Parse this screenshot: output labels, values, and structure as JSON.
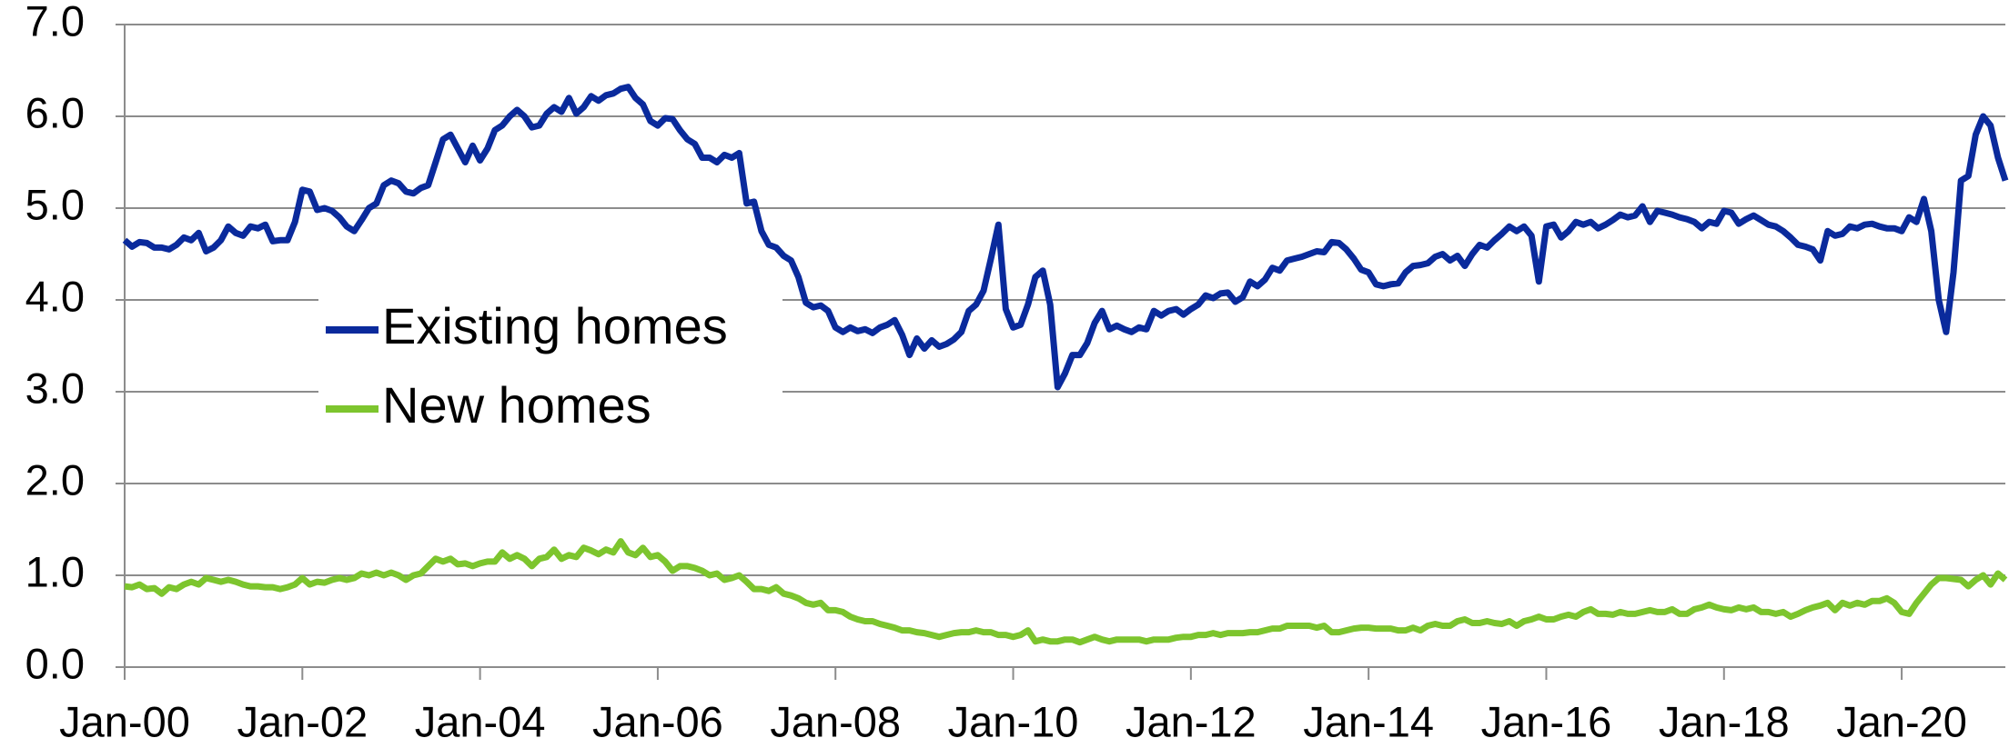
{
  "chart_data": {
    "type": "line",
    "categories": [
      "Jan-00",
      null,
      null,
      null,
      null,
      null,
      null,
      null,
      null,
      null,
      null,
      null,
      null,
      null,
      null,
      null,
      null,
      null,
      null,
      null,
      null,
      null,
      null,
      null,
      "Jan-02",
      null,
      null,
      null,
      null,
      null,
      null,
      null,
      null,
      null,
      null,
      null,
      null,
      null,
      null,
      null,
      null,
      null,
      null,
      null,
      null,
      null,
      null,
      null,
      "Jan-04",
      null,
      null,
      null,
      null,
      null,
      null,
      null,
      null,
      null,
      null,
      null,
      null,
      null,
      null,
      null,
      null,
      null,
      null,
      null,
      null,
      null,
      null,
      null,
      "Jan-06",
      null,
      null,
      null,
      null,
      null,
      null,
      null,
      null,
      null,
      null,
      null,
      null,
      null,
      null,
      null,
      null,
      null,
      null,
      null,
      null,
      null,
      null,
      null,
      "Jan-08",
      null,
      null,
      null,
      null,
      null,
      null,
      null,
      null,
      null,
      null,
      null,
      null,
      null,
      null,
      null,
      null,
      null,
      null,
      null,
      null,
      null,
      null,
      null,
      "Jan-10",
      null,
      null,
      null,
      null,
      null,
      null,
      null,
      null,
      null,
      null,
      null,
      null,
      null,
      null,
      null,
      null,
      null,
      null,
      null,
      null,
      null,
      null,
      null,
      "Jan-12",
      null,
      null,
      null,
      null,
      null,
      null,
      null,
      null,
      null,
      null,
      null,
      null,
      null,
      null,
      null,
      null,
      null,
      null,
      null,
      null,
      null,
      null,
      null,
      "Jan-14",
      null,
      null,
      null,
      null,
      null,
      null,
      null,
      null,
      null,
      null,
      null,
      null,
      null,
      null,
      null,
      null,
      null,
      null,
      null,
      null,
      null,
      null,
      null,
      "Jan-16",
      null,
      null,
      null,
      null,
      null,
      null,
      null,
      null,
      null,
      null,
      null,
      null,
      null,
      null,
      null,
      null,
      null,
      null,
      null,
      null,
      null,
      null,
      null,
      "Jan-18",
      null,
      null,
      null,
      null,
      null,
      null,
      null,
      null,
      null,
      null,
      null,
      null,
      null,
      null,
      null,
      null,
      null,
      null,
      null,
      null,
      null,
      null,
      null,
      "Jan-20",
      null,
      null,
      null,
      null,
      null,
      null,
      null,
      null,
      null,
      null,
      null,
      null,
      null,
      null
    ],
    "series": [
      {
        "name": "Existing homes",
        "color": "#0a2a9c",
        "values": [
          4.65,
          4.58,
          4.63,
          4.62,
          4.57,
          4.57,
          4.55,
          4.6,
          4.68,
          4.65,
          4.73,
          4.53,
          4.57,
          4.65,
          4.8,
          4.73,
          4.7,
          4.8,
          4.78,
          4.82,
          4.64,
          4.65,
          4.65,
          4.85,
          5.2,
          5.18,
          4.98,
          5.0,
          4.97,
          4.9,
          4.8,
          4.75,
          4.87,
          5.0,
          5.05,
          5.25,
          5.3,
          5.27,
          5.18,
          5.16,
          5.22,
          5.25,
          5.5,
          5.75,
          5.8,
          5.65,
          5.5,
          5.68,
          5.52,
          5.65,
          5.85,
          5.9,
          6.0,
          6.07,
          6.0,
          5.88,
          5.9,
          6.03,
          6.1,
          6.05,
          6.2,
          6.03,
          6.1,
          6.22,
          6.17,
          6.23,
          6.25,
          6.3,
          6.32,
          6.2,
          6.13,
          5.95,
          5.9,
          5.98,
          5.97,
          5.85,
          5.75,
          5.7,
          5.55,
          5.55,
          5.5,
          5.58,
          5.55,
          5.6,
          5.05,
          5.07,
          4.75,
          4.6,
          4.57,
          4.48,
          4.43,
          4.25,
          3.97,
          3.92,
          3.94,
          3.88,
          3.7,
          3.65,
          3.7,
          3.66,
          3.68,
          3.64,
          3.7,
          3.73,
          3.78,
          3.62,
          3.4,
          3.58,
          3.47,
          3.56,
          3.49,
          3.52,
          3.57,
          3.65,
          3.88,
          3.95,
          4.1,
          4.45,
          4.82,
          3.9,
          3.7,
          3.73,
          3.95,
          4.25,
          4.32,
          3.95,
          3.05,
          3.2,
          3.4,
          3.4,
          3.53,
          3.75,
          3.88,
          3.68,
          3.72,
          3.68,
          3.65,
          3.7,
          3.68,
          3.88,
          3.83,
          3.88,
          3.9,
          3.84,
          3.9,
          3.95,
          4.05,
          4.02,
          4.07,
          4.08,
          3.98,
          4.03,
          4.2,
          4.15,
          4.22,
          4.35,
          4.32,
          4.43,
          4.45,
          4.47,
          4.5,
          4.53,
          4.52,
          4.63,
          4.62,
          4.55,
          4.45,
          4.33,
          4.3,
          4.17,
          4.15,
          4.17,
          4.18,
          4.3,
          4.37,
          4.38,
          4.4,
          4.47,
          4.5,
          4.43,
          4.48,
          4.37,
          4.5,
          4.6,
          4.57,
          4.65,
          4.72,
          4.8,
          4.75,
          4.8,
          4.7,
          4.2,
          4.8,
          4.82,
          4.68,
          4.75,
          4.85,
          4.82,
          4.85,
          4.78,
          4.82,
          4.87,
          4.93,
          4.9,
          4.92,
          5.02,
          4.85,
          4.97,
          4.95,
          4.93,
          4.9,
          4.88,
          4.85,
          4.78,
          4.85,
          4.83,
          4.97,
          4.95,
          4.83,
          4.88,
          4.92,
          4.87,
          4.82,
          4.8,
          4.75,
          4.68,
          4.6,
          4.58,
          4.55,
          4.43,
          4.75,
          4.7,
          4.72,
          4.8,
          4.78,
          4.82,
          4.83,
          4.8,
          4.78,
          4.78,
          4.75,
          4.9,
          4.85,
          5.1,
          4.75,
          4.0,
          3.65,
          4.3,
          5.3,
          5.35,
          5.8,
          6.0,
          5.9,
          5.55,
          5.3
        ]
      },
      {
        "name": "New homes",
        "color": "#7dc52e",
        "values": [
          0.88,
          0.87,
          0.9,
          0.85,
          0.86,
          0.8,
          0.87,
          0.85,
          0.9,
          0.93,
          0.9,
          0.97,
          0.95,
          0.93,
          0.95,
          0.93,
          0.9,
          0.88,
          0.88,
          0.87,
          0.87,
          0.85,
          0.87,
          0.9,
          0.97,
          0.9,
          0.93,
          0.92,
          0.95,
          0.97,
          0.95,
          0.97,
          1.02,
          1.0,
          1.03,
          1.0,
          1.03,
          1.0,
          0.95,
          1.0,
          1.02,
          1.1,
          1.18,
          1.15,
          1.18,
          1.12,
          1.13,
          1.1,
          1.13,
          1.15,
          1.15,
          1.25,
          1.18,
          1.22,
          1.18,
          1.1,
          1.18,
          1.2,
          1.28,
          1.18,
          1.22,
          1.2,
          1.3,
          1.27,
          1.23,
          1.28,
          1.25,
          1.37,
          1.25,
          1.22,
          1.3,
          1.2,
          1.22,
          1.15,
          1.05,
          1.1,
          1.1,
          1.08,
          1.05,
          1.0,
          1.02,
          0.95,
          0.97,
          1.0,
          0.93,
          0.85,
          0.85,
          0.83,
          0.87,
          0.8,
          0.78,
          0.75,
          0.7,
          0.68,
          0.7,
          0.62,
          0.62,
          0.6,
          0.55,
          0.52,
          0.5,
          0.5,
          0.47,
          0.45,
          0.43,
          0.4,
          0.4,
          0.38,
          0.37,
          0.35,
          0.33,
          0.35,
          0.37,
          0.38,
          0.38,
          0.4,
          0.38,
          0.38,
          0.35,
          0.35,
          0.33,
          0.35,
          0.4,
          0.28,
          0.3,
          0.28,
          0.28,
          0.3,
          0.3,
          0.27,
          0.3,
          0.33,
          0.3,
          0.28,
          0.3,
          0.3,
          0.3,
          0.3,
          0.28,
          0.3,
          0.3,
          0.3,
          0.32,
          0.33,
          0.33,
          0.35,
          0.35,
          0.37,
          0.35,
          0.37,
          0.37,
          0.37,
          0.38,
          0.38,
          0.4,
          0.42,
          0.42,
          0.45,
          0.45,
          0.45,
          0.45,
          0.43,
          0.45,
          0.38,
          0.38,
          0.4,
          0.42,
          0.43,
          0.43,
          0.42,
          0.42,
          0.42,
          0.4,
          0.4,
          0.43,
          0.4,
          0.45,
          0.47,
          0.45,
          0.45,
          0.5,
          0.52,
          0.48,
          0.48,
          0.5,
          0.48,
          0.47,
          0.5,
          0.45,
          0.5,
          0.52,
          0.55,
          0.52,
          0.52,
          0.55,
          0.57,
          0.55,
          0.6,
          0.63,
          0.58,
          0.58,
          0.57,
          0.6,
          0.58,
          0.58,
          0.6,
          0.62,
          0.6,
          0.6,
          0.63,
          0.58,
          0.58,
          0.63,
          0.65,
          0.68,
          0.65,
          0.63,
          0.62,
          0.65,
          0.63,
          0.65,
          0.6,
          0.6,
          0.58,
          0.6,
          0.55,
          0.58,
          0.62,
          0.65,
          0.67,
          0.7,
          0.62,
          0.7,
          0.67,
          0.7,
          0.68,
          0.72,
          0.72,
          0.75,
          0.7,
          0.6,
          0.58,
          0.7,
          0.8,
          0.9,
          0.97,
          0.97,
          0.96,
          0.95,
          0.88,
          0.95,
          1.0,
          0.9,
          1.02,
          0.95
        ]
      }
    ],
    "ylim": [
      0,
      7
    ],
    "yticks": [
      {
        "value": 0,
        "label": "0.0"
      },
      {
        "value": 1,
        "label": "1.0"
      },
      {
        "value": 2,
        "label": "2.0"
      },
      {
        "value": 3,
        "label": "3.0"
      },
      {
        "value": 4,
        "label": "4.0"
      },
      {
        "value": 5,
        "label": "5.0"
      },
      {
        "value": 6,
        "label": "6.0"
      },
      {
        "value": 7,
        "label": "7.0"
      }
    ],
    "grid": true,
    "legend": "center-left"
  }
}
